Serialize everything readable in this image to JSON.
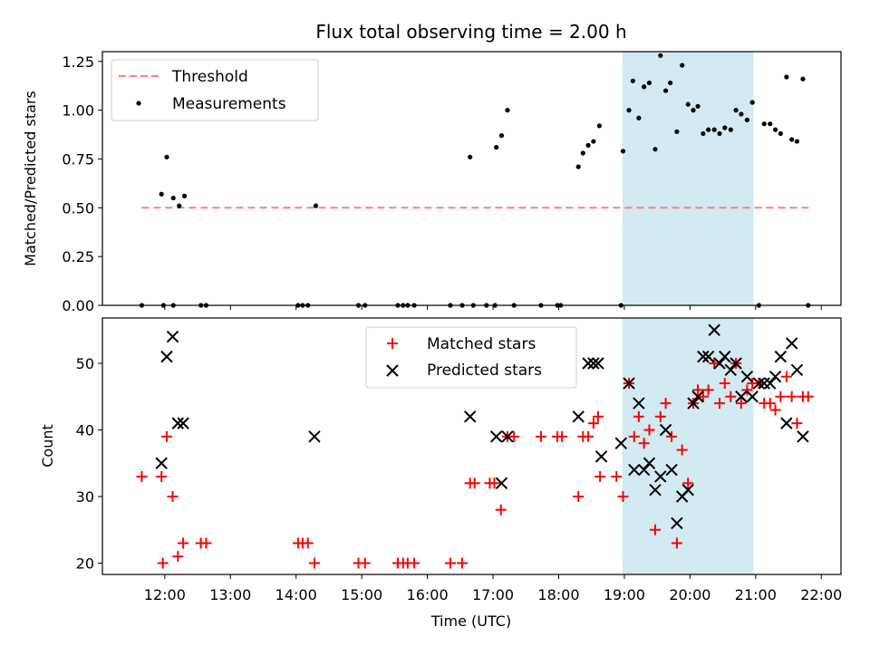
{
  "chart_data": [
    {
      "type": "scatter",
      "title": "Flux total observing time = 2.00 h",
      "xlabel": "",
      "ylabel": "Matched/Predicted stars",
      "xlim": [
        11.05,
        22.3
      ],
      "ylim": [
        0.0,
        1.3
      ],
      "yticks": [
        {
          "value": 0.0,
          "label": "0.00"
        },
        {
          "value": 0.25,
          "label": "0.25"
        },
        {
          "value": 0.5,
          "label": "0.50"
        },
        {
          "value": 0.75,
          "label": "0.75"
        },
        {
          "value": 1.0,
          "label": "1.00"
        },
        {
          "value": 1.25,
          "label": "1.25"
        }
      ],
      "grid": false,
      "legend_position": "top-left",
      "highlight_band": {
        "x0": 18.97,
        "x1": 20.97,
        "color": "#add8e6"
      },
      "series": [
        {
          "name": "Threshold",
          "kind": "line",
          "style": "dashed",
          "color": "#ff7f7f",
          "points": [
            [
              11.65,
              0.5
            ],
            [
              21.85,
              0.5
            ]
          ]
        },
        {
          "name": "Measurements",
          "kind": "scatter",
          "color": "#000000",
          "points": [
            [
              11.65,
              0.0
            ],
            [
              11.95,
              0.57
            ],
            [
              12.03,
              0.76
            ],
            [
              12.13,
              0.55
            ],
            [
              12.22,
              0.51
            ],
            [
              12.3,
              0.56
            ],
            [
              11.98,
              0.0
            ],
            [
              12.13,
              0.0
            ],
            [
              12.55,
              0.0
            ],
            [
              12.63,
              0.0
            ],
            [
              14.03,
              0.0
            ],
            [
              14.1,
              0.0
            ],
            [
              14.18,
              0.0
            ],
            [
              14.3,
              0.51
            ],
            [
              14.95,
              0.0
            ],
            [
              15.05,
              0.0
            ],
            [
              15.55,
              0.0
            ],
            [
              15.63,
              0.0
            ],
            [
              15.7,
              0.0
            ],
            [
              15.8,
              0.0
            ],
            [
              16.35,
              0.0
            ],
            [
              16.53,
              0.0
            ],
            [
              16.65,
              0.76
            ],
            [
              16.7,
              0.0
            ],
            [
              16.9,
              0.0
            ],
            [
              17.03,
              0.0
            ],
            [
              17.05,
              0.81
            ],
            [
              17.13,
              0.87
            ],
            [
              17.22,
              1.0
            ],
            [
              17.32,
              0.0
            ],
            [
              17.73,
              0.0
            ],
            [
              17.98,
              0.0
            ],
            [
              18.03,
              0.0
            ],
            [
              18.3,
              0.71
            ],
            [
              18.37,
              0.78
            ],
            [
              18.45,
              0.82
            ],
            [
              18.53,
              0.84
            ],
            [
              18.62,
              0.92
            ],
            [
              18.95,
              0.0
            ],
            [
              18.98,
              0.79
            ],
            [
              19.07,
              1.0
            ],
            [
              19.13,
              1.15
            ],
            [
              19.22,
              0.96
            ],
            [
              19.3,
              1.12
            ],
            [
              19.38,
              1.14
            ],
            [
              19.47,
              0.8
            ],
            [
              19.55,
              1.28
            ],
            [
              19.63,
              1.1
            ],
            [
              19.7,
              1.14
            ],
            [
              19.8,
              0.89
            ],
            [
              19.88,
              1.23
            ],
            [
              19.97,
              1.03
            ],
            [
              20.05,
              1.0
            ],
            [
              20.12,
              1.02
            ],
            [
              20.2,
              0.88
            ],
            [
              20.28,
              0.9
            ],
            [
              20.37,
              0.9
            ],
            [
              20.45,
              0.88
            ],
            [
              20.53,
              0.91
            ],
            [
              20.62,
              0.9
            ],
            [
              20.7,
              1.0
            ],
            [
              20.78,
              0.98
            ],
            [
              20.87,
              0.95
            ],
            [
              20.95,
              1.04
            ],
            [
              21.05,
              0.0
            ],
            [
              21.13,
              0.93
            ],
            [
              21.22,
              0.93
            ],
            [
              21.3,
              0.9
            ],
            [
              21.38,
              0.88
            ],
            [
              21.47,
              1.17
            ],
            [
              21.55,
              0.85
            ],
            [
              21.63,
              0.84
            ],
            [
              21.72,
              1.16
            ],
            [
              21.8,
              0.0
            ]
          ]
        }
      ]
    },
    {
      "type": "scatter",
      "title": "",
      "xlabel": "Time (UTC)",
      "ylabel": "Count",
      "xlim": [
        11.05,
        22.3
      ],
      "ylim": [
        18.3,
        56.8
      ],
      "xticks": [
        {
          "value": 12,
          "label": "12:00"
        },
        {
          "value": 13,
          "label": "13:00"
        },
        {
          "value": 14,
          "label": "14:00"
        },
        {
          "value": 15,
          "label": "15:00"
        },
        {
          "value": 16,
          "label": "16:00"
        },
        {
          "value": 17,
          "label": "17:00"
        },
        {
          "value": 18,
          "label": "18:00"
        },
        {
          "value": 19,
          "label": "19:00"
        },
        {
          "value": 20,
          "label": "20:00"
        },
        {
          "value": 21,
          "label": "21:00"
        },
        {
          "value": 22,
          "label": "22:00"
        }
      ],
      "yticks": [
        {
          "value": 20,
          "label": "20"
        },
        {
          "value": 30,
          "label": "30"
        },
        {
          "value": 40,
          "label": "40"
        },
        {
          "value": 50,
          "label": "50"
        }
      ],
      "grid": false,
      "legend_position": "top-center",
      "highlight_band": {
        "x0": 18.97,
        "x1": 20.97,
        "color": "#add8e6"
      },
      "series": [
        {
          "name": "Matched stars",
          "kind": "plus",
          "color": "#ff0000",
          "points": [
            [
              11.65,
              33
            ],
            [
              11.95,
              33
            ],
            [
              11.97,
              20
            ],
            [
              12.03,
              39
            ],
            [
              12.12,
              30
            ],
            [
              12.2,
              21
            ],
            [
              12.28,
              23
            ],
            [
              12.55,
              23
            ],
            [
              12.63,
              23
            ],
            [
              14.03,
              23
            ],
            [
              14.1,
              23
            ],
            [
              14.18,
              23
            ],
            [
              14.28,
              20
            ],
            [
              14.95,
              20
            ],
            [
              15.05,
              20
            ],
            [
              15.55,
              20
            ],
            [
              15.63,
              20
            ],
            [
              15.7,
              20
            ],
            [
              15.8,
              20
            ],
            [
              16.35,
              20
            ],
            [
              16.53,
              20
            ],
            [
              16.65,
              32
            ],
            [
              16.72,
              32
            ],
            [
              16.95,
              32
            ],
            [
              17.02,
              32
            ],
            [
              17.12,
              28
            ],
            [
              17.22,
              39
            ],
            [
              17.32,
              39
            ],
            [
              17.73,
              39
            ],
            [
              17.98,
              39
            ],
            [
              18.05,
              39
            ],
            [
              18.3,
              30
            ],
            [
              18.37,
              39
            ],
            [
              18.45,
              39
            ],
            [
              18.53,
              41
            ],
            [
              18.6,
              42
            ],
            [
              18.63,
              33
            ],
            [
              18.88,
              33
            ],
            [
              18.98,
              30
            ],
            [
              19.07,
              47
            ],
            [
              19.15,
              39
            ],
            [
              19.22,
              42
            ],
            [
              19.3,
              38
            ],
            [
              19.38,
              40
            ],
            [
              19.47,
              25
            ],
            [
              19.55,
              42
            ],
            [
              19.63,
              44
            ],
            [
              19.72,
              39
            ],
            [
              19.8,
              23
            ],
            [
              19.88,
              37
            ],
            [
              19.97,
              32
            ],
            [
              20.05,
              44
            ],
            [
              20.12,
              46
            ],
            [
              20.2,
              45
            ],
            [
              20.28,
              46
            ],
            [
              20.37,
              50
            ],
            [
              20.45,
              44
            ],
            [
              20.53,
              47
            ],
            [
              20.62,
              45
            ],
            [
              20.7,
              50
            ],
            [
              20.78,
              44
            ],
            [
              20.87,
              46
            ],
            [
              20.95,
              47
            ],
            [
              21.05,
              47
            ],
            [
              21.13,
              44
            ],
            [
              21.22,
              44
            ],
            [
              21.3,
              43
            ],
            [
              21.38,
              45
            ],
            [
              21.47,
              48
            ],
            [
              21.55,
              45
            ],
            [
              21.63,
              41
            ],
            [
              21.72,
              45
            ],
            [
              21.8,
              45
            ]
          ]
        },
        {
          "name": "Predicted stars",
          "kind": "cross",
          "color": "#000000",
          "points": [
            [
              11.95,
              35
            ],
            [
              12.03,
              51
            ],
            [
              12.12,
              54
            ],
            [
              12.2,
              41
            ],
            [
              12.28,
              41
            ],
            [
              14.28,
              39
            ],
            [
              16.65,
              42
            ],
            [
              17.05,
              39
            ],
            [
              17.13,
              32
            ],
            [
              17.22,
              39
            ],
            [
              18.3,
              42
            ],
            [
              18.45,
              50
            ],
            [
              18.53,
              50
            ],
            [
              18.6,
              50
            ],
            [
              18.65,
              36
            ],
            [
              18.95,
              38
            ],
            [
              19.07,
              47
            ],
            [
              19.15,
              34
            ],
            [
              19.22,
              44
            ],
            [
              19.3,
              34
            ],
            [
              19.38,
              35
            ],
            [
              19.47,
              31
            ],
            [
              19.55,
              33
            ],
            [
              19.63,
              40
            ],
            [
              19.72,
              34
            ],
            [
              19.8,
              26
            ],
            [
              19.88,
              30
            ],
            [
              19.97,
              31
            ],
            [
              20.05,
              44
            ],
            [
              20.12,
              45
            ],
            [
              20.2,
              51
            ],
            [
              20.28,
              51
            ],
            [
              20.37,
              55
            ],
            [
              20.45,
              50
            ],
            [
              20.53,
              51
            ],
            [
              20.62,
              49
            ],
            [
              20.7,
              50
            ],
            [
              20.78,
              45
            ],
            [
              20.87,
              48
            ],
            [
              20.95,
              45
            ],
            [
              21.05,
              47
            ],
            [
              21.13,
              47
            ],
            [
              21.22,
              47
            ],
            [
              21.3,
              48
            ],
            [
              21.38,
              51
            ],
            [
              21.47,
              41
            ],
            [
              21.55,
              53
            ],
            [
              21.63,
              49
            ],
            [
              21.72,
              39
            ]
          ]
        }
      ]
    }
  ]
}
